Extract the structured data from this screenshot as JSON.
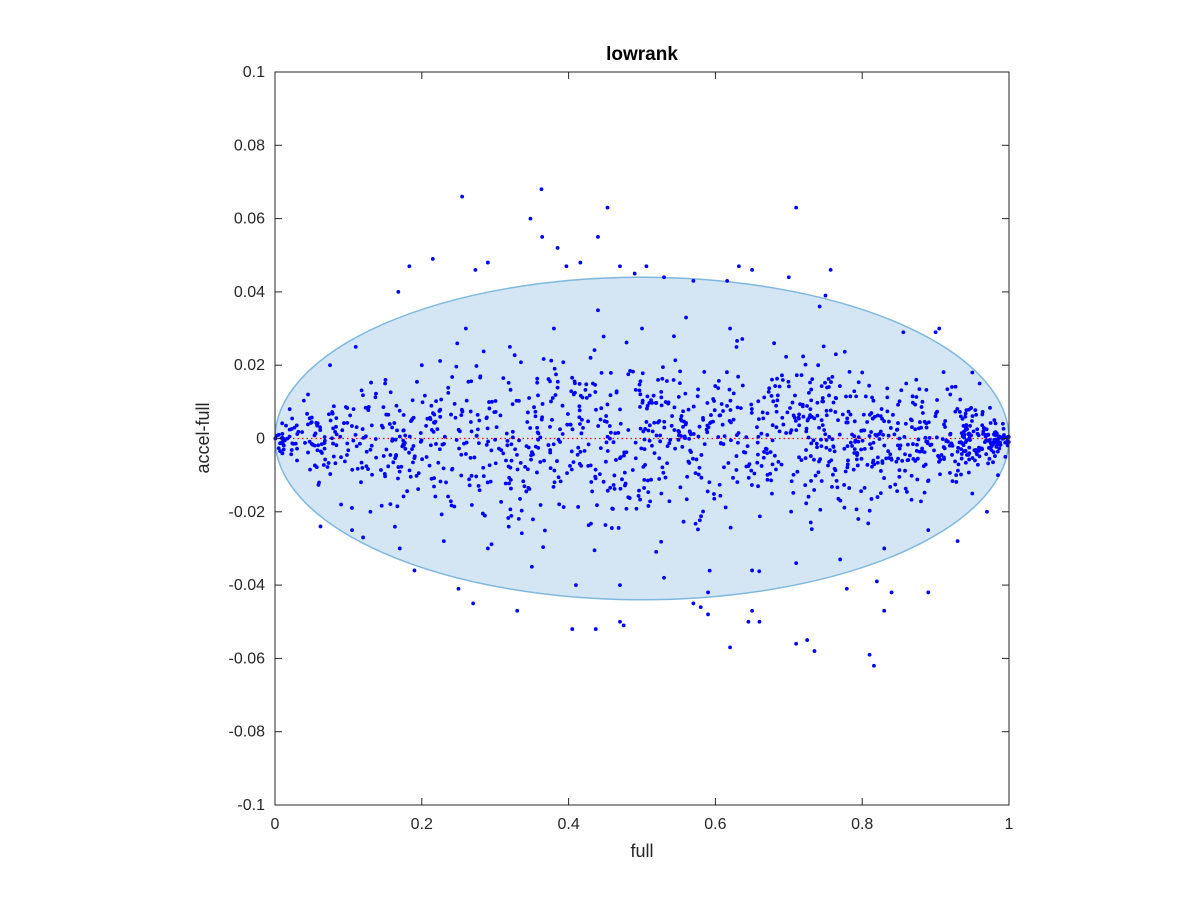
{
  "chart_data": {
    "type": "scatter",
    "title": "lowrank",
    "xlabel": "full",
    "ylabel": "accel-full",
    "xlim": [
      0,
      1
    ],
    "ylim": [
      -0.1,
      0.1
    ],
    "xticks": [
      0,
      0.2,
      0.4,
      0.6,
      0.8,
      1
    ],
    "xtick_labels": [
      "0",
      "0.2",
      "0.4",
      "0.6",
      "0.8",
      "1"
    ],
    "yticks": [
      -0.1,
      -0.08,
      -0.06,
      -0.04,
      -0.02,
      0,
      0.02,
      0.04,
      0.06,
      0.08,
      0.1
    ],
    "ytick_labels": [
      "-0.1",
      "-0.08",
      "-0.06",
      "-0.04",
      "-0.02",
      "0",
      "0.02",
      "0.04",
      "0.06",
      "0.08",
      "0.1"
    ],
    "grid": false,
    "colors": {
      "points": "#0000ff",
      "ellipse_fill": "#d4e6f3",
      "ellipse_stroke": "#7fb7dd",
      "zero_line": "#ff0000",
      "axes": "#262626"
    },
    "ellipse": {
      "center": [
        0.5,
        0.0
      ],
      "x_semi_axis": 0.5,
      "y_semi_axis": 0.044
    },
    "zero_line": {
      "y": 0,
      "style": "dotted"
    },
    "series": [
      {
        "marker": "dot",
        "x": [
          0.255,
          0.363,
          0.453,
          0.71,
          0.348,
          0.44,
          0.364,
          0.385,
          0.416,
          0.47,
          0.397,
          0.29,
          0.273,
          0.215,
          0.183,
          0.168,
          0.65,
          0.7,
          0.757,
          0.632,
          0.75,
          0.506,
          0.49,
          0.53,
          0.57,
          0.616,
          0.742,
          0.856,
          0.9,
          0.905,
          0.95,
          0.96,
          0.405,
          0.437,
          0.475,
          0.47,
          0.33,
          0.27,
          0.25,
          0.19,
          0.12,
          0.105,
          0.062,
          0.725,
          0.62,
          0.645,
          0.71,
          0.735,
          0.81,
          0.816,
          0.83,
          0.89,
          0.59,
          0.66,
          0.65,
          0.57,
          0.58,
          0.779,
          0.84,
          0.82,
          0.93,
          0.97,
          0.985,
          0.995,
          0.005,
          0.01,
          0.02,
          0.03,
          0.045,
          0.06,
          0.075,
          0.09,
          0.11,
          0.13,
          0.15,
          0.17,
          0.2,
          0.23,
          0.26,
          0.29,
          0.32,
          0.35,
          0.38,
          0.41,
          0.44,
          0.47,
          0.5,
          0.53,
          0.56,
          0.59,
          0.62,
          0.65,
          0.68,
          0.71,
          0.74,
          0.77,
          0.8,
          0.83,
          0.86,
          0.89,
          0.92,
          0.95,
          0.98
        ],
        "y": [
          0.066,
          0.068,
          0.063,
          0.063,
          0.06,
          0.055,
          0.055,
          0.052,
          0.048,
          0.047,
          0.047,
          0.048,
          0.046,
          0.049,
          0.047,
          0.04,
          0.046,
          0.044,
          0.046,
          0.047,
          0.039,
          0.047,
          0.045,
          0.044,
          0.043,
          0.043,
          0.036,
          0.029,
          0.029,
          0.03,
          0.018,
          0.015,
          -0.052,
          -0.052,
          -0.051,
          -0.05,
          -0.047,
          -0.045,
          -0.041,
          -0.036,
          -0.027,
          -0.025,
          -0.024,
          -0.055,
          -0.057,
          -0.05,
          -0.056,
          -0.058,
          -0.059,
          -0.062,
          -0.047,
          -0.042,
          -0.048,
          -0.05,
          -0.047,
          -0.045,
          -0.046,
          -0.041,
          -0.042,
          -0.039,
          -0.028,
          -0.02,
          -0.01,
          -0.005,
          0.001,
          -0.004,
          0.008,
          -0.006,
          0.012,
          -0.012,
          0.02,
          -0.018,
          0.025,
          -0.02,
          0.015,
          -0.03,
          0.02,
          -0.028,
          0.03,
          -0.03,
          0.025,
          -0.035,
          0.03,
          -0.04,
          0.035,
          -0.04,
          0.03,
          -0.038,
          0.033,
          -0.042,
          0.03,
          -0.036,
          0.026,
          -0.034,
          0.02,
          -0.033,
          0.018,
          -0.03,
          0.015,
          -0.025,
          0.012,
          -0.015,
          0.005
        ]
      }
    ],
    "fill_points": {
      "count": 1300,
      "inside_ellipse": true,
      "x_density_increase_right": true
    }
  }
}
